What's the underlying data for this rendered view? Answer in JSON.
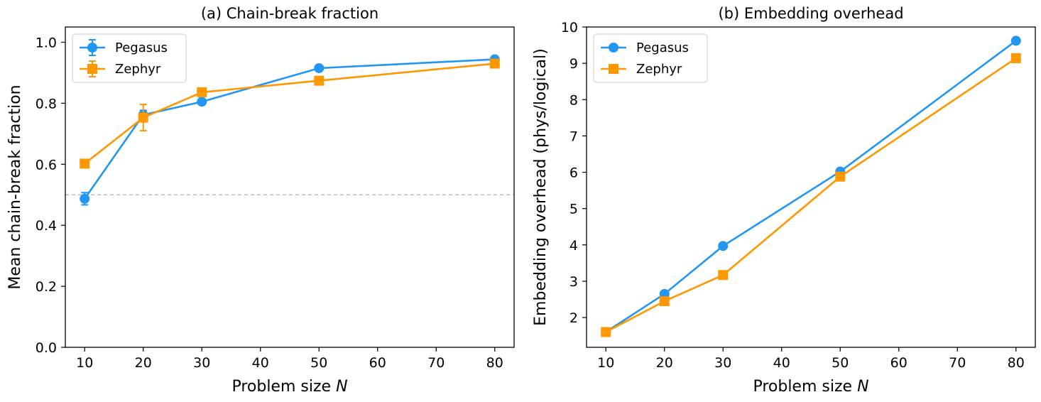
{
  "chart_data": [
    {
      "type": "line",
      "title": "(a) Chain-break fraction",
      "xlabel": "Problem size",
      "xlabel_var": "N",
      "ylabel": "Mean chain-break fraction",
      "xlim": [
        6.7,
        83.3
      ],
      "ylim": [
        0.0,
        1.05
      ],
      "xticks": [
        10,
        20,
        30,
        40,
        50,
        60,
        70,
        80
      ],
      "yticks": [
        0.0,
        0.2,
        0.4,
        0.6,
        0.8,
        1.0
      ],
      "ytick_labels": [
        "0.0",
        "0.2",
        "0.4",
        "0.6",
        "0.8",
        "1.0"
      ],
      "grid": false,
      "legend": "top-left",
      "reference_line": {
        "y": 0.5,
        "style": "dashed",
        "color": "#b0b0b0"
      },
      "series": [
        {
          "name": "Pegasus",
          "color": "#2196f3",
          "marker": "circle",
          "x": [
            10,
            20,
            30,
            50,
            80
          ],
          "y": [
            0.487,
            0.762,
            0.805,
            0.915,
            0.944
          ],
          "err": [
            0.02,
            0.015,
            0.01,
            0.007,
            0.006
          ]
        },
        {
          "name": "Zephyr",
          "color": "#ff9800",
          "marker": "square",
          "x": [
            10,
            20,
            30,
            50,
            80
          ],
          "y": [
            0.602,
            0.753,
            0.836,
            0.874,
            0.93
          ],
          "err": [
            0.007,
            0.043,
            0.01,
            0.006,
            0.012
          ]
        }
      ]
    },
    {
      "type": "line",
      "title": "(b) Embedding overhead",
      "xlabel": "Problem size",
      "xlabel_var": "N",
      "ylabel": "Embedding overhead (phys/logical)",
      "xlim": [
        6.7,
        83.3
      ],
      "ylim": [
        1.18,
        10.0
      ],
      "xticks": [
        10,
        20,
        30,
        40,
        50,
        60,
        70,
        80
      ],
      "yticks": [
        2,
        3,
        4,
        5,
        6,
        7,
        8,
        9,
        10
      ],
      "ytick_labels": [
        "2",
        "3",
        "4",
        "5",
        "6",
        "7",
        "8",
        "9",
        "10"
      ],
      "grid": false,
      "legend": "top-left",
      "series": [
        {
          "name": "Pegasus",
          "color": "#2196f3",
          "marker": "circle",
          "x": [
            10,
            20,
            30,
            50,
            80
          ],
          "y": [
            1.6,
            2.65,
            3.97,
            6.02,
            9.62
          ]
        },
        {
          "name": "Zephyr",
          "color": "#ff9800",
          "marker": "square",
          "x": [
            10,
            20,
            30,
            50,
            80
          ],
          "y": [
            1.6,
            2.45,
            3.17,
            5.88,
            9.14
          ]
        }
      ]
    }
  ]
}
